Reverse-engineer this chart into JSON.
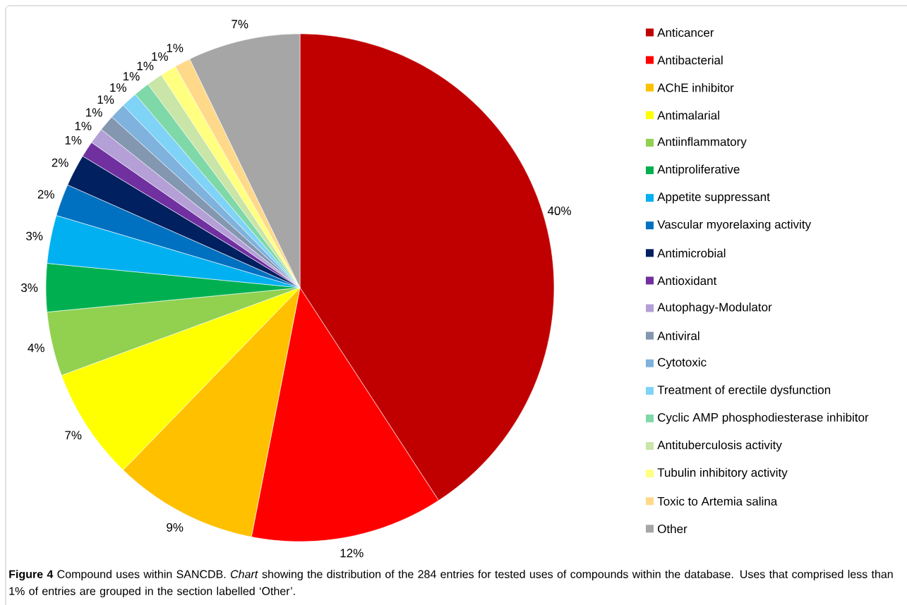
{
  "chart_data": {
    "type": "pie",
    "categories": [
      "Anticancer",
      "Antibacterial",
      "AChE inhibitor",
      "Antimalarial",
      "Antiinflammatory",
      "Antiproliferative",
      "Appetite suppressant",
      "Vascular myorelaxing activity",
      "Antimicrobial",
      "Antioxidant",
      "Autophagy-Modulator",
      "Antiviral",
      "Cytotoxic",
      "Treatment of erectile dysfunction",
      "Cyclic AMP phosphodiesterase inhibitor",
      "Antituberculosis activity",
      "Tubulin inhibitory activity",
      "Toxic to Artemia salina",
      "Other"
    ],
    "values": [
      40,
      12,
      9,
      7,
      4,
      3,
      3,
      2,
      2,
      1,
      1,
      1,
      1,
      1,
      1,
      1,
      1,
      1,
      7
    ],
    "value_labels": [
      "40%",
      "12%",
      "9%",
      "7%",
      "4%",
      "3%",
      "3%",
      "2%",
      "2%",
      "1%",
      "1%",
      "1%",
      "1%",
      "1%",
      "1%",
      "1%",
      "1%",
      "1%",
      "7%"
    ],
    "colors": [
      "#c00000",
      "#ff0000",
      "#ffc000",
      "#ffff00",
      "#92d050",
      "#00b050",
      "#00b0f0",
      "#0070c0",
      "#002060",
      "#7030a0",
      "#b4a0d6",
      "#8497b0",
      "#7fb2dd",
      "#7fd3f7",
      "#7fd8a8",
      "#c9e5a7",
      "#ffff80",
      "#ffd98a",
      "#a6a6a6"
    ],
    "legend": "right",
    "annotations": [
      "**Figure 4** Compound uses within SANCDB. *Chart* showing the distribution of the 284 entries for tested uses of compounds within the database. Uses that comprised less than 1% of entries are grouped in the section labelled ‘Other’."
    ]
  }
}
